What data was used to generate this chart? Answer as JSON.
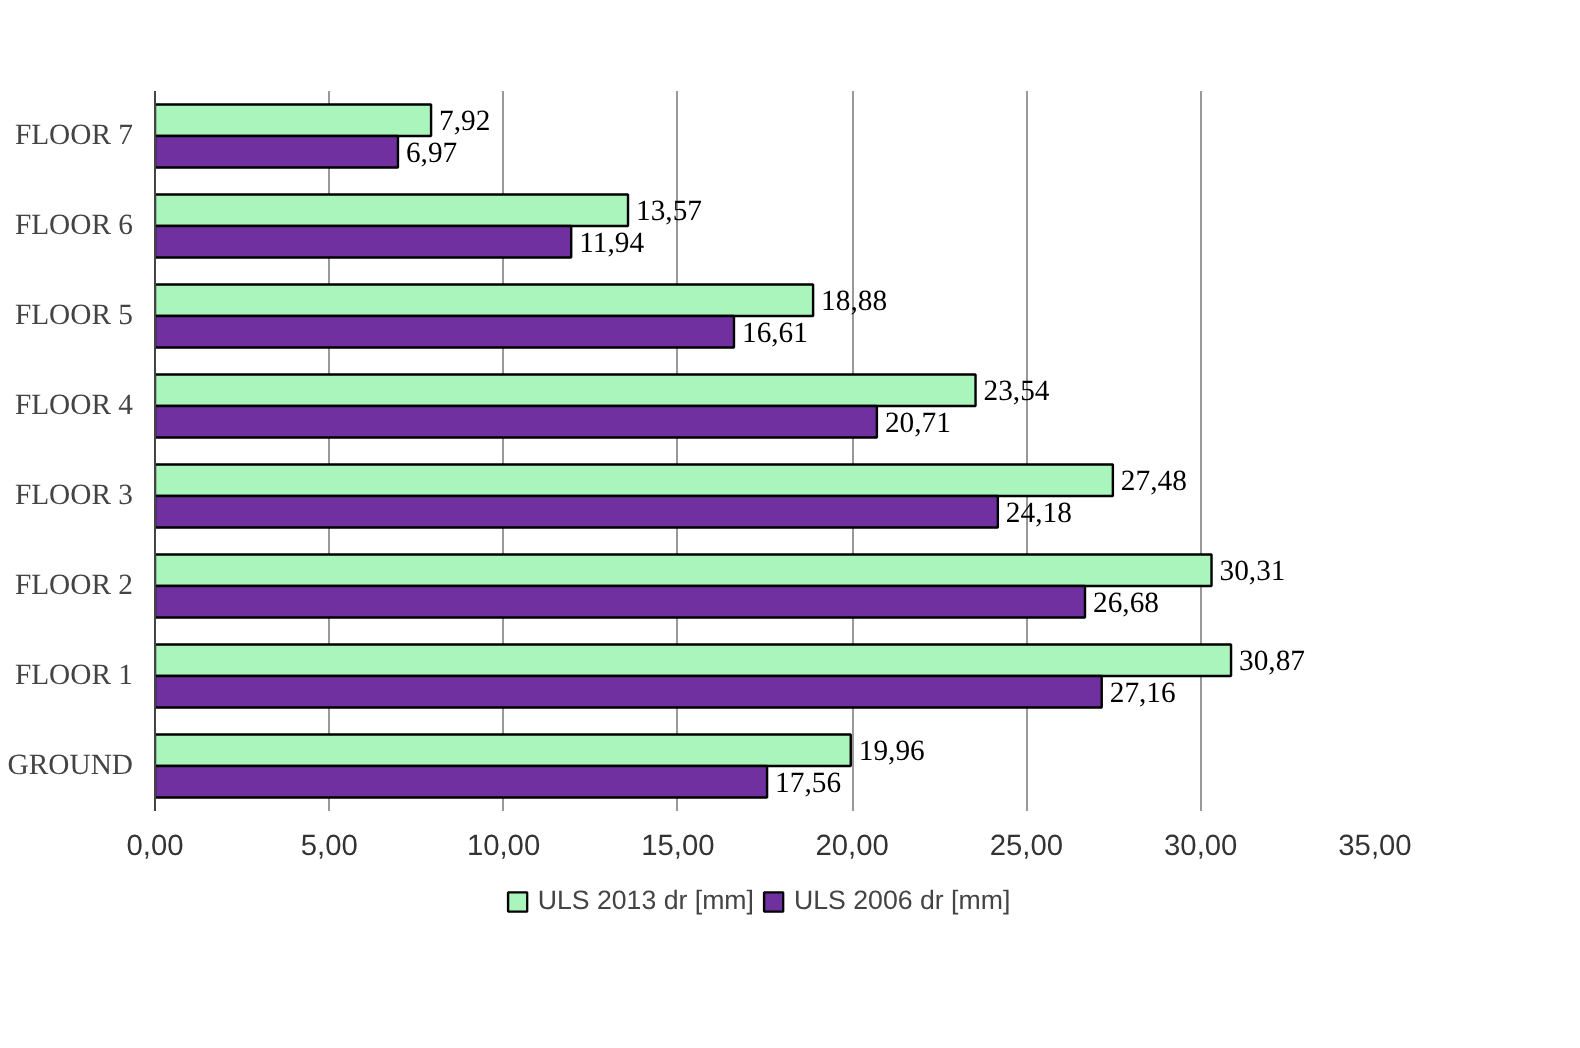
{
  "chart_data": {
    "type": "bar",
    "orientation": "horizontal",
    "categories": [
      "FLOOR 7",
      "FLOOR 6",
      "FLOOR 5",
      "FLOOR 4",
      "FLOOR 3",
      "FLOOR 2",
      "FLOOR 1",
      "GROUND"
    ],
    "series": [
      {
        "name": "ULS 2013 dr [mm]",
        "color": "#a9f5bc",
        "values": [
          7.92,
          13.57,
          18.88,
          23.54,
          27.48,
          30.31,
          30.87,
          19.96
        ],
        "value_labels": [
          "7,92",
          "13,57",
          "18,88",
          "23,54",
          "27,48",
          "30,31",
          "30,87",
          "19,96"
        ]
      },
      {
        "name": "ULS 2006 dr [mm]",
        "color": "#7030a0",
        "values": [
          6.97,
          11.94,
          16.61,
          20.71,
          24.18,
          26.68,
          27.16,
          17.56
        ],
        "value_labels": [
          "6,97",
          "11,94",
          "16,61",
          "20,71",
          "24,18",
          "26,68",
          "27,16",
          "17,56"
        ]
      }
    ],
    "xlim": [
      0,
      35
    ],
    "xticks": [
      {
        "value": 0,
        "label": "0,00"
      },
      {
        "value": 5,
        "label": "5,00"
      },
      {
        "value": 10,
        "label": "10,00"
      },
      {
        "value": 15,
        "label": "15,00"
      },
      {
        "value": 20,
        "label": "20,00"
      },
      {
        "value": 25,
        "label": "25,00"
      },
      {
        "value": 30,
        "label": "30,00"
      },
      {
        "value": 35,
        "label": "35,00"
      }
    ],
    "grid": "x",
    "legend": "bottom"
  }
}
